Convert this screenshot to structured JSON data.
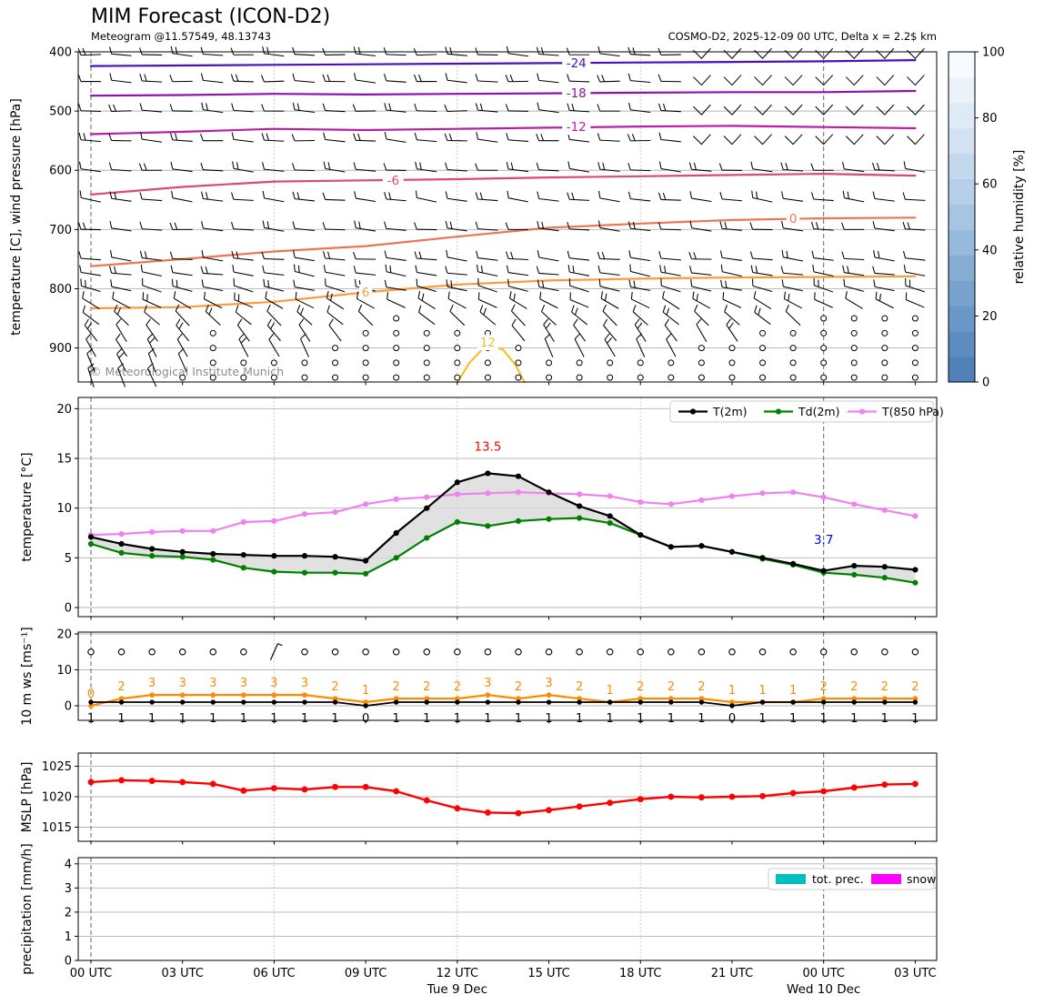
{
  "header": {
    "title": "MIM Forecast (ICON-D2)",
    "subtitle": "Meteogram @11.57549, 48.13743",
    "model_info": "COSMO-D2, 2025-12-09 00 UTC, Delta x = 2.2$ km"
  },
  "watermark": "© Meteorological Institute Munich",
  "time_axis": {
    "tick_hours": [
      0,
      3,
      6,
      9,
      12,
      15,
      18,
      21,
      24,
      27
    ],
    "tick_labels": [
      "00 UTC",
      "03 UTC",
      "06 UTC",
      "09 UTC",
      "12 UTC",
      "15 UTC",
      "18 UTC",
      "21 UTC",
      "00 UTC",
      "03 UTC"
    ],
    "day_labels": [
      {
        "hour": 12,
        "label": "Tue 9 Dec"
      },
      {
        "hour": 24,
        "label": "Wed 10 Dec"
      }
    ],
    "dashed_hours": [
      0,
      24
    ],
    "dotted_hours": [
      6,
      12,
      18
    ]
  },
  "chart_data": [
    {
      "id": "upper_air",
      "type": "heatmap",
      "title": "",
      "ylabel": "temperature [C], wind pressure [hPa]",
      "yticks": [
        400,
        500,
        600,
        700,
        800,
        900
      ],
      "ylim": [
        400,
        957
      ],
      "grid": true,
      "colorbar": {
        "label": "relative humidity [%]",
        "ticks": [
          0,
          20,
          40,
          60,
          80,
          100
        ],
        "colors_bottom_to_top": [
          "#4f81b8",
          "#5c8cc0",
          "#6997c7",
          "#77a3ce",
          "#86aed5",
          "#96badc",
          "#a7c5e2",
          "#b7d0e9",
          "#c5d9ee",
          "#d3e2f3",
          "#dfeaf7",
          "#ebf2fa",
          "#f7fbff"
        ]
      },
      "contours": [
        {
          "label": "-24",
          "color": "#4a10bd",
          "hours": [
            0,
            3,
            6,
            9,
            12,
            15,
            18,
            21,
            24,
            27
          ],
          "pressures": [
            424,
            423,
            422,
            421,
            420,
            419,
            418,
            417,
            416,
            414
          ]
        },
        {
          "label": "-18",
          "color": "#8d12b0",
          "hours": [
            0,
            3,
            6,
            9,
            12,
            15,
            18,
            21,
            24,
            27
          ],
          "pressures": [
            474,
            473,
            471,
            472,
            471,
            470,
            469,
            468,
            468,
            466
          ]
        },
        {
          "label": "-12",
          "color": "#b81fa6",
          "hours": [
            0,
            3,
            6,
            9,
            12,
            15,
            18,
            21,
            24,
            27
          ],
          "pressures": [
            539,
            535,
            530,
            532,
            530,
            528,
            526,
            525,
            527,
            529
          ]
        },
        {
          "label": "-6",
          "color": "#d94a74",
          "hours": [
            0,
            3,
            6,
            9,
            12,
            15,
            18,
            21,
            24,
            27
          ],
          "pressures": [
            641,
            628,
            619,
            617,
            615,
            612,
            610,
            608,
            606,
            609
          ]
        },
        {
          "label": "0",
          "color": "#ee7552",
          "hours": [
            0,
            3,
            6,
            9,
            12,
            15,
            18,
            21,
            24,
            27
          ],
          "pressures": [
            762,
            750,
            737,
            728,
            712,
            697,
            690,
            684,
            681,
            680
          ]
        },
        {
          "label": "6",
          "color": "#fb9b3c",
          "hours": [
            0,
            3,
            6,
            9,
            12,
            15,
            18,
            21,
            24,
            27
          ],
          "pressures": [
            833,
            831,
            822,
            806,
            793,
            786,
            783,
            781,
            780,
            779
          ]
        },
        {
          "label": "12",
          "color": "#f2c12e",
          "hours": [
            12.0,
            12.4,
            12.8,
            13.1,
            13.5,
            13.9,
            14.2
          ],
          "pressures": [
            958,
            925,
            903,
            896,
            903,
            928,
            958
          ]
        }
      ],
      "contour_label_positions": [
        {
          "label": "-24",
          "hour": 15.9,
          "pressure": 419
        },
        {
          "label": "-18",
          "hour": 15.9,
          "pressure": 470
        },
        {
          "label": "-12",
          "hour": 15.9,
          "pressure": 527
        },
        {
          "label": "-6",
          "hour": 9.9,
          "pressure": 617
        },
        {
          "label": "0",
          "hour": 23.0,
          "pressure": 682
        },
        {
          "label": "6",
          "hour": 9.0,
          "pressure": 806
        },
        {
          "label": "12",
          "hour": 13.0,
          "pressure": 891
        }
      ],
      "barbs": {
        "levels_hpa": [
          405,
          450,
          500,
          550,
          600,
          650,
          700,
          750,
          775,
          800,
          825,
          850,
          875,
          900,
          925,
          950
        ],
        "n_hours": 28,
        "base_angle_by_level": {
          "405": 3,
          "450": 3,
          "500": 3,
          "550": 4,
          "600": 5,
          "650": 7,
          "700": 5,
          "750": 6,
          "775": 9,
          "800": 14,
          "825": 28,
          "850": 42,
          "875": 55,
          "900": 62,
          "925": 66,
          "950": 70
        },
        "note": "light winds; calm circles in the boundary layer"
      }
    },
    {
      "id": "temperature",
      "type": "line",
      "ylabel": "temperature [°C]",
      "yticks": [
        0,
        5,
        10,
        15,
        20
      ],
      "ylim": [
        -1,
        21.2
      ],
      "x_hours": [
        0,
        1,
        2,
        3,
        4,
        5,
        6,
        7,
        8,
        9,
        10,
        11,
        12,
        13,
        14,
        15,
        16,
        17,
        18,
        19,
        20,
        21,
        22,
        23,
        24,
        25,
        26,
        27
      ],
      "series": [
        {
          "name": "T(2m)",
          "color": "#000000",
          "values": [
            7.1,
            6.4,
            5.9,
            5.6,
            5.4,
            5.3,
            5.2,
            5.2,
            5.1,
            4.7,
            7.5,
            10.0,
            12.6,
            13.5,
            13.2,
            11.6,
            10.2,
            9.2,
            7.3,
            6.1,
            6.2,
            5.6,
            5.0,
            4.4,
            3.7,
            4.2,
            4.1,
            3.8
          ]
        },
        {
          "name": "Td(2m)",
          "color": "#008000",
          "values": [
            6.4,
            5.5,
            5.2,
            5.1,
            4.8,
            4.0,
            3.6,
            3.5,
            3.5,
            3.4,
            5.0,
            7.0,
            8.6,
            8.2,
            8.7,
            8.9,
            9.0,
            8.5,
            7.3,
            6.1,
            6.2,
            5.6,
            4.9,
            4.3,
            3.5,
            3.3,
            3.0,
            2.5
          ]
        },
        {
          "name": "T(850 hPa)",
          "color": "#ee82ee",
          "values": [
            7.3,
            7.4,
            7.6,
            7.7,
            7.7,
            8.6,
            8.7,
            9.4,
            9.6,
            10.4,
            10.9,
            11.1,
            11.4,
            11.5,
            11.6,
            11.5,
            11.4,
            11.2,
            10.6,
            10.4,
            10.8,
            11.2,
            11.5,
            11.6,
            11.1,
            10.4,
            9.8,
            9.2
          ]
        }
      ],
      "fill_between": {
        "upper": "T(2m)",
        "lower": "Td(2m)",
        "color": "#d9d9d9"
      },
      "annotations": [
        {
          "text": "13.5",
          "color": "#ff0000",
          "hour": 13,
          "y": 15.8
        },
        {
          "text": "3.7",
          "color": "#0000ff",
          "hour": 24,
          "y": 6.4
        }
      ],
      "legend_position": "upper right"
    },
    {
      "id": "wind",
      "type": "line",
      "ylabel": "10 m ws [ms⁻¹]",
      "yticks": [
        0,
        10,
        20
      ],
      "ylim": [
        -4,
        20.5
      ],
      "series": [
        {
          "name": "10 m wind speed",
          "color": "#000000",
          "values": [
            1,
            1,
            1,
            1,
            1,
            1,
            1,
            1,
            1,
            0,
            1,
            1,
            1,
            1,
            1,
            1,
            1,
            1,
            1,
            1,
            1,
            0,
            1,
            1,
            1,
            1,
            1,
            1
          ]
        },
        {
          "name": "gusts",
          "color": "#ff8c00",
          "values": [
            0,
            2,
            3,
            3,
            3,
            3,
            3,
            3,
            2,
            1,
            2,
            2,
            2,
            3,
            2,
            3,
            2,
            1,
            2,
            2,
            2,
            1,
            1,
            1,
            2,
            2,
            2,
            2
          ]
        }
      ],
      "direction_row_value": 15,
      "direction_symbols": "calm circle every hour except wind barb at hour 6"
    },
    {
      "id": "mslp",
      "type": "line",
      "ylabel": "MSLP [hPa]",
      "yticks": [
        1015,
        1020,
        1025
      ],
      "ylim": [
        1012.5,
        1027.2
      ],
      "series": [
        {
          "name": "MSLP",
          "color": "#ff0000",
          "values": [
            1022.4,
            1022.7,
            1022.6,
            1022.4,
            1022.1,
            1021.0,
            1021.4,
            1021.2,
            1021.6,
            1021.6,
            1020.9,
            1019.4,
            1018.1,
            1017.4,
            1017.3,
            1017.8,
            1018.4,
            1019.0,
            1019.6,
            1020.0,
            1019.9,
            1020.0,
            1020.1,
            1020.6,
            1020.9,
            1021.5,
            1022.0,
            1022.1
          ]
        }
      ]
    },
    {
      "id": "precipitation",
      "type": "bar",
      "ylabel": "precipitation [mm/h]",
      "yticks": [
        0,
        1,
        2,
        3,
        4
      ],
      "ylim": [
        0,
        4.3
      ],
      "series": [
        {
          "name": "tot. prec.",
          "color": "#00bfbf",
          "values": [
            0,
            0,
            0,
            0,
            0,
            0,
            0,
            0,
            0,
            0,
            0,
            0,
            0,
            0,
            0,
            0,
            0,
            0,
            0,
            0,
            0,
            0,
            0,
            0,
            0,
            0,
            0,
            0
          ]
        },
        {
          "name": "snow",
          "color": "#ff00ff",
          "values": [
            0,
            0,
            0,
            0,
            0,
            0,
            0,
            0,
            0,
            0,
            0,
            0,
            0,
            0,
            0,
            0,
            0,
            0,
            0,
            0,
            0,
            0,
            0,
            0,
            0,
            0,
            0,
            0
          ]
        }
      ],
      "legend_position": "upper right"
    }
  ]
}
